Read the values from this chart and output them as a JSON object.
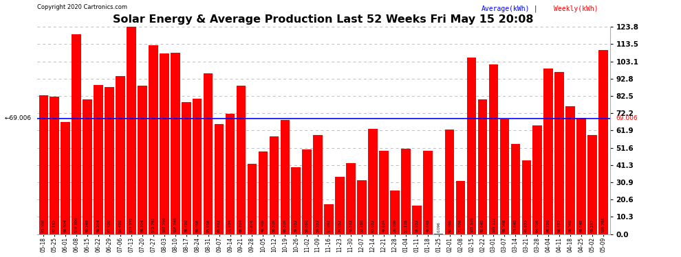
{
  "title": "Solar Energy & Average Production Last 52 Weeks Fri May 15 20:08",
  "copyright": "Copyright 2020 Cartronics.com",
  "legend_avg": "Average(kWh)",
  "legend_weekly": "Weekly(kWh)",
  "average_value": 69.006,
  "bar_color": "#ff0000",
  "avg_line_color": "#0000ff",
  "avg_label_color": "#0000ff",
  "background_color": "#ffffff",
  "grid_color": "#bbbbbb",
  "ylim": [
    0.0,
    123.8
  ],
  "yticks": [
    0.0,
    10.3,
    20.6,
    30.9,
    41.3,
    51.6,
    61.9,
    72.2,
    82.5,
    92.8,
    103.1,
    113.5,
    123.8
  ],
  "dates": [
    "05-18",
    "05-25",
    "06-01",
    "06-08",
    "06-15",
    "06-22",
    "06-29",
    "07-06",
    "07-13",
    "07-20",
    "07-27",
    "08-03",
    "08-10",
    "08-17",
    "08-24",
    "08-31",
    "09-07",
    "09-14",
    "09-21",
    "09-28",
    "10-05",
    "10-12",
    "10-19",
    "10-26",
    "11-02",
    "11-09",
    "11-16",
    "11-23",
    "11-30",
    "12-07",
    "12-14",
    "12-21",
    "12-28",
    "01-04",
    "01-11",
    "01-18",
    "01-25",
    "02-01",
    "02-08",
    "02-15",
    "02-22",
    "03-01",
    "03-07",
    "03-14",
    "03-21",
    "03-28",
    "04-04",
    "04-11",
    "04-18",
    "04-25",
    "05-02",
    "05-09"
  ],
  "values": [
    83.0,
    82.152,
    66.804,
    119.3,
    80.248,
    89.204,
    87.62,
    94.42,
    123.772,
    88.704,
    112.781,
    107.75,
    108.24,
    78.62,
    80.856,
    95.956,
    65.812,
    71.934,
    88.704,
    41.876,
    49.4,
    58.316,
    68.316,
    39.932,
    50.55,
    59.332,
    17.992,
    34.052,
    42.512,
    32.28,
    63.032,
    49.624,
    26.208,
    51.128,
    16.932,
    49.648,
    0.096,
    62.46,
    31.676,
    105.52,
    80.64,
    101.112,
    68.568,
    53.84,
    43.972,
    64.816,
    98.72,
    96.632,
    76.36,
    69.548,
    59.252,
    109.788
  ]
}
